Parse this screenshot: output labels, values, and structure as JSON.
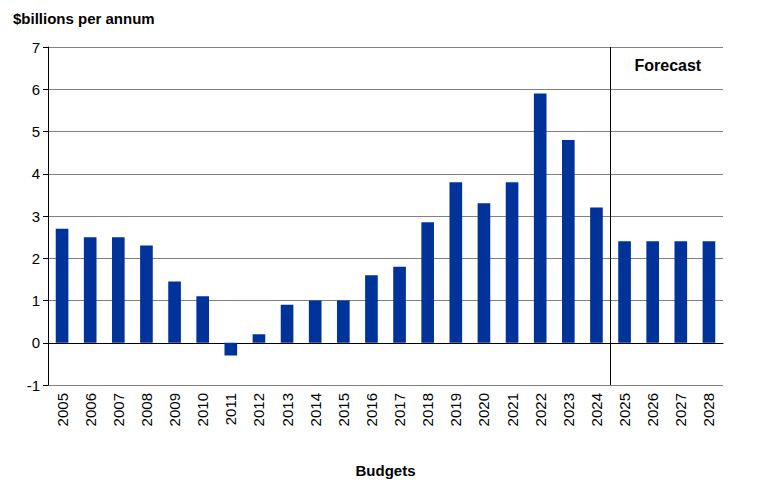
{
  "chart_data": {
    "type": "bar",
    "title": "$billions per annum",
    "x_label": "Budgets",
    "categories": [
      "2005",
      "2006",
      "2007",
      "2008",
      "2009",
      "2010",
      "2011",
      "2012",
      "2013",
      "2014",
      "2015",
      "2016",
      "2017",
      "2018",
      "2019",
      "2020",
      "2021",
      "2022",
      "2023",
      "2024",
      "2025",
      "2026",
      "2027",
      "2028"
    ],
    "values": [
      2.7,
      2.5,
      2.5,
      2.3,
      1.45,
      1.1,
      -0.3,
      0.2,
      0.9,
      1.0,
      1.0,
      1.6,
      1.8,
      2.85,
      3.8,
      3.3,
      3.8,
      5.9,
      4.8,
      3.2,
      2.4,
      2.4,
      2.4,
      2.4
    ],
    "color": "#003399",
    "ylim": [
      -1,
      7
    ],
    "yticks": [
      -1,
      0,
      1,
      2,
      3,
      4,
      5,
      6,
      7
    ],
    "grid": true,
    "annotations": [
      {
        "text": "Forecast",
        "x": "2025"
      }
    ]
  }
}
